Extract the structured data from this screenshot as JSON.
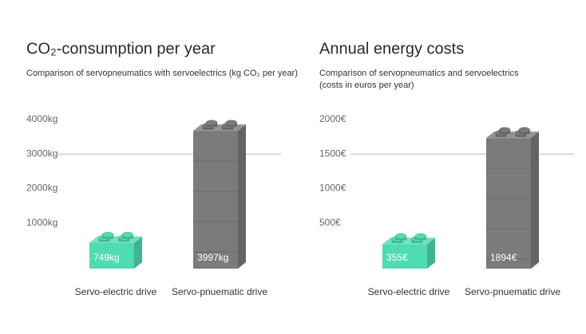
{
  "chart_data": [
    {
      "type": "bar",
      "title": "CO₂-consumption per year",
      "subtitle": [
        "Comparison of servopneumatics with servoelectrics (kg CO₂ per year)"
      ],
      "categories": [
        "Servo-electric drive",
        "Servo-pnuematic drive"
      ],
      "values": [
        749,
        3997
      ],
      "value_labels": [
        "749kg",
        "3997kg"
      ],
      "colors": [
        "#4fdcb0",
        "#7b7b7b"
      ],
      "ylim": [
        0,
        4000
      ],
      "yticks": [
        {
          "value": 1000,
          "label": "1000kg"
        },
        {
          "value": 2000,
          "label": "2000kg"
        },
        {
          "value": 3000,
          "label": "3000kg"
        },
        {
          "value": 4000,
          "label": "4000kg"
        }
      ],
      "reference_line": 3000
    },
    {
      "type": "bar",
      "title": "Annual energy costs",
      "subtitle": [
        "Comparison of servopneumatics and servoelectrics",
        "(costs in euros per year)"
      ],
      "categories": [
        "Servo-electric drive",
        "Servo-pnuematic drive"
      ],
      "values": [
        355,
        1894
      ],
      "value_labels": [
        "355€",
        "1894€"
      ],
      "colors": [
        "#4fdcb0",
        "#7b7b7b"
      ],
      "ylim": [
        0,
        2000
      ],
      "yticks": [
        {
          "value": 500,
          "label": "500€"
        },
        {
          "value": 1000,
          "label": "1000€"
        },
        {
          "value": 1500,
          "label": "1500€"
        },
        {
          "value": 2000,
          "label": "2000€"
        }
      ],
      "reference_line": 1500
    }
  ]
}
